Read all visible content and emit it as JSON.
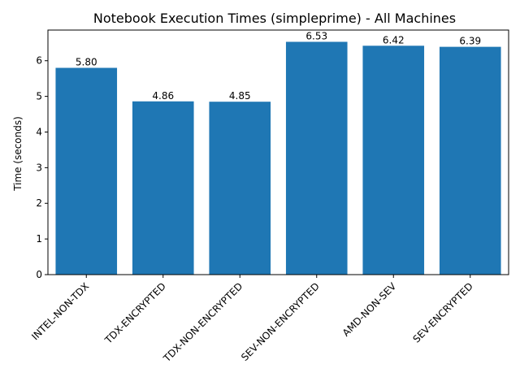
{
  "chart_data": {
    "type": "bar",
    "title": "Notebook Execution Times (simpleprime) - All Machines",
    "xlabel": "",
    "ylabel": "Time (seconds)",
    "categories": [
      "INTEL-NON-TDX",
      "TDX-ENCRYPTED",
      "TDX-NON-ENCRYPTED",
      "SEV-NON-ENCRYPTED",
      "AMD-NON-SEV",
      "SEV-ENCRYPTED"
    ],
    "values": [
      5.8,
      4.86,
      4.85,
      6.53,
      6.42,
      6.39
    ],
    "data_labels": [
      "5.80",
      "4.86",
      "4.85",
      "6.53",
      "6.42",
      "6.39"
    ],
    "ylim": [
      0,
      6.86
    ],
    "yticks": [
      0,
      1,
      2,
      3,
      4,
      5,
      6
    ],
    "bar_color": "#1f77b4",
    "grid": false,
    "legend": "none"
  }
}
